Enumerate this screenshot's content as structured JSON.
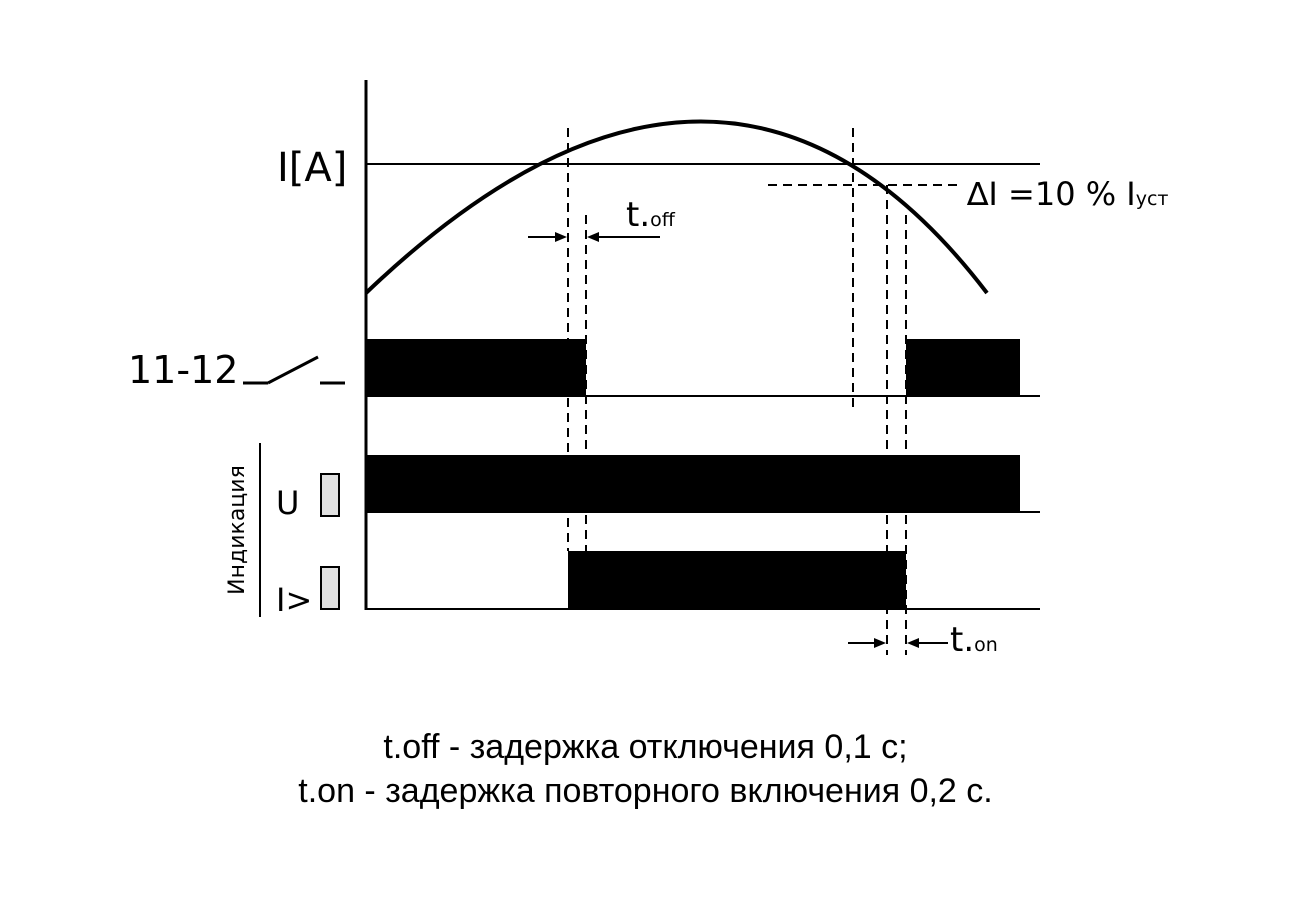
{
  "labels": {
    "current_axis": "I[A]",
    "contact": "11-12",
    "t_off_main": "t.",
    "t_off_sub": "off",
    "t_on_main": "t.",
    "t_on_sub": "on",
    "delta_main": "∆I =10 % I",
    "delta_sub": "уст",
    "indication": "Индикация",
    "u": "U",
    "i_over": "I>"
  },
  "notes": {
    "line1": "t.off - задержка отключения 0,1 с;",
    "line2": "t.on - задержка повторного включения 0,2 с."
  },
  "colors": {
    "ink": "#000000",
    "indicator_fill": "#e0e0e0",
    "background": "#ffffff"
  }
}
